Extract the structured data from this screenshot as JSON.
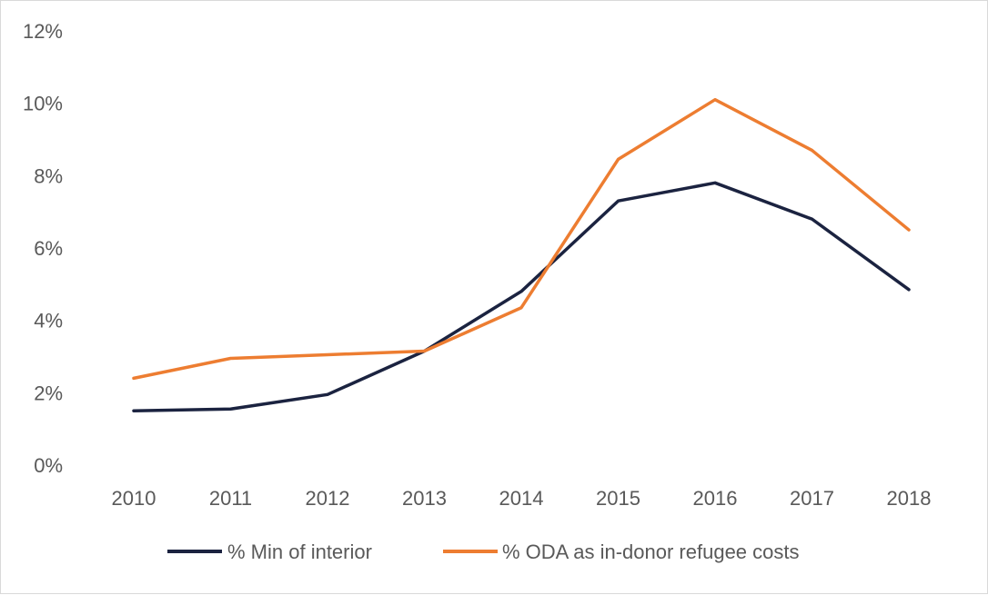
{
  "chart_data": {
    "type": "line",
    "x": [
      "2010",
      "2011",
      "2012",
      "2013",
      "2014",
      "2015",
      "2016",
      "2017",
      "2018"
    ],
    "series": [
      {
        "name": "% Min of interior",
        "color": "#1b2340",
        "values": [
          1.5,
          1.55,
          1.95,
          3.15,
          4.8,
          7.3,
          7.8,
          6.8,
          4.85
        ]
      },
      {
        "name": "% ODA as in-donor refugee costs",
        "color": "#ed7d31",
        "values": [
          2.4,
          2.95,
          3.05,
          3.15,
          4.35,
          8.45,
          10.1,
          8.7,
          6.5
        ]
      }
    ],
    "ylim": [
      0,
      12
    ],
    "yticks": [
      "0%",
      "2%",
      "4%",
      "6%",
      "8%",
      "10%",
      "12%"
    ],
    "ytick_values": [
      0,
      2,
      4,
      6,
      8,
      10,
      12
    ],
    "grid": false,
    "legend_position": "bottom"
  }
}
